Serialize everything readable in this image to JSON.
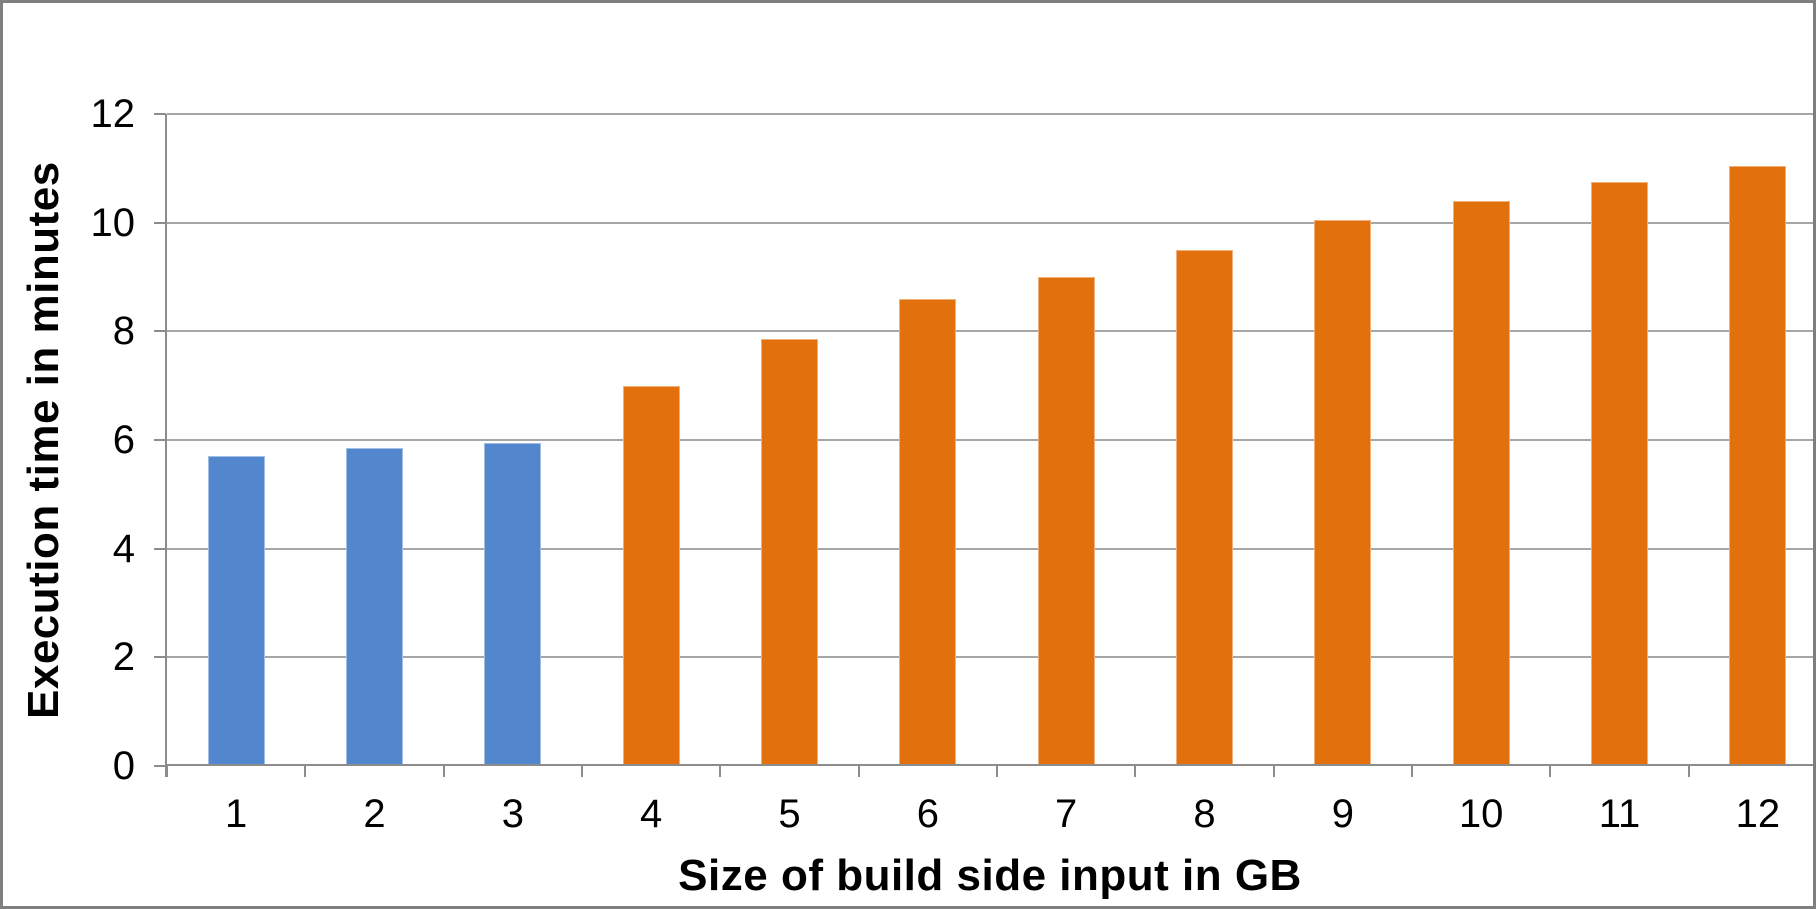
{
  "chart_data": {
    "type": "bar",
    "title": "",
    "xlabel": "Size of build side input in GB",
    "ylabel": "Execution time in minutes",
    "categories": [
      "1",
      "2",
      "3",
      "4",
      "5",
      "6",
      "7",
      "8",
      "9",
      "10",
      "11",
      "12"
    ],
    "series": [
      {
        "name": "Execution time",
        "values": [
          5.7,
          5.85,
          5.95,
          7.0,
          7.85,
          8.6,
          9.0,
          9.5,
          10.05,
          10.4,
          10.75,
          11.05
        ]
      }
    ],
    "bar_colors": [
      "#5287ce",
      "#5287ce",
      "#5287ce",
      "#e2700c",
      "#e2700c",
      "#e2700c",
      "#e2700c",
      "#e2700c",
      "#e2700c",
      "#e2700c",
      "#e2700c",
      "#e2700c"
    ],
    "ylim": [
      0,
      12
    ],
    "ytick_step": 2,
    "ytick_labels": [
      "0",
      "2",
      "4",
      "6",
      "8",
      "10",
      "12"
    ],
    "grid": "horizontal",
    "legend": "none"
  },
  "colors": {
    "bar_blue": "#5287ce",
    "bar_orange": "#e2700c",
    "gridline": "#a6a6a6",
    "axis_line": "#8c8c8c",
    "frame_border": "#7f7f7f",
    "text": "#000000",
    "background": "#ffffff"
  }
}
